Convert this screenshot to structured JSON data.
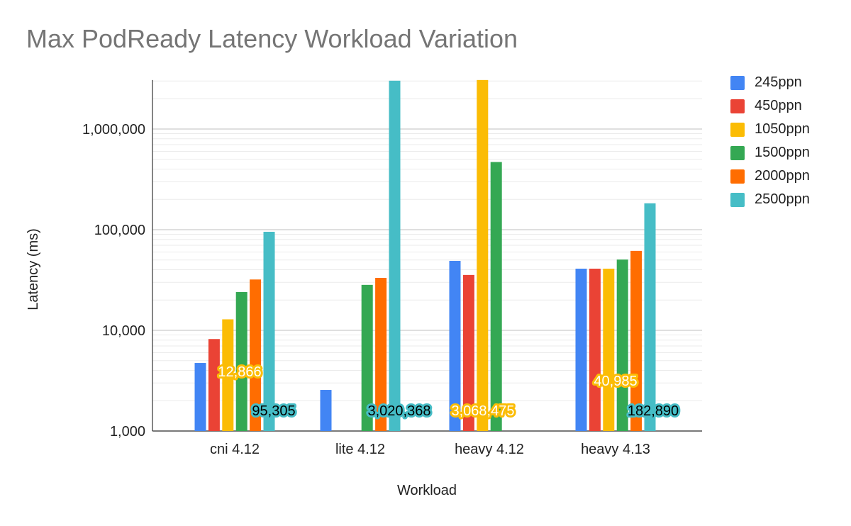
{
  "chart_data": {
    "type": "bar",
    "title": "Max PodReady Latency Workload Variation",
    "xlabel": "Workload",
    "ylabel": "Latency (ms)",
    "yscale": "log",
    "ylim": [
      1000,
      3068475
    ],
    "yticks": [
      1000,
      10000,
      100000,
      1000000
    ],
    "ytick_labels": [
      "1,000",
      "10,000",
      "100,000",
      "1,000,000"
    ],
    "grid": true,
    "legend_position": "right",
    "categories": [
      "cni 4.12",
      "lite 4.12",
      "heavy 4.12",
      "heavy 4.13"
    ],
    "series": [
      {
        "name": "245ppn",
        "color": "#4285f4",
        "values": [
          4740,
          2560,
          49000,
          40985
        ]
      },
      {
        "name": "450ppn",
        "color": "#ea4335",
        "values": [
          8200,
          null,
          35500,
          40985
        ]
      },
      {
        "name": "1050ppn",
        "color": "#fbbc04",
        "values": [
          12866,
          null,
          3068475,
          40985
        ]
      },
      {
        "name": "1500ppn",
        "color": "#34a853",
        "values": [
          24000,
          28300,
          470000,
          50500
        ]
      },
      {
        "name": "2000ppn",
        "color": "#ff6d01",
        "values": [
          32000,
          33200,
          null,
          61600
        ]
      },
      {
        "name": "2500ppn",
        "color": "#46bdc6",
        "values": [
          95305,
          3020368,
          null,
          182890
        ]
      }
    ],
    "annotations": [
      {
        "category": "cni 4.12",
        "series": "1050ppn",
        "label": "12,866"
      },
      {
        "category": "cni 4.12",
        "series": "2500ppn",
        "label": "95,305"
      },
      {
        "category": "lite 4.12",
        "series": "2500ppn",
        "label": "3,020,368"
      },
      {
        "category": "heavy 4.12",
        "series": "1050ppn",
        "label": "3,068,475"
      },
      {
        "category": "heavy 4.13",
        "series": "1050ppn",
        "label": "40,985"
      },
      {
        "category": "heavy 4.13",
        "series": "2500ppn",
        "label": "182,890"
      }
    ]
  }
}
